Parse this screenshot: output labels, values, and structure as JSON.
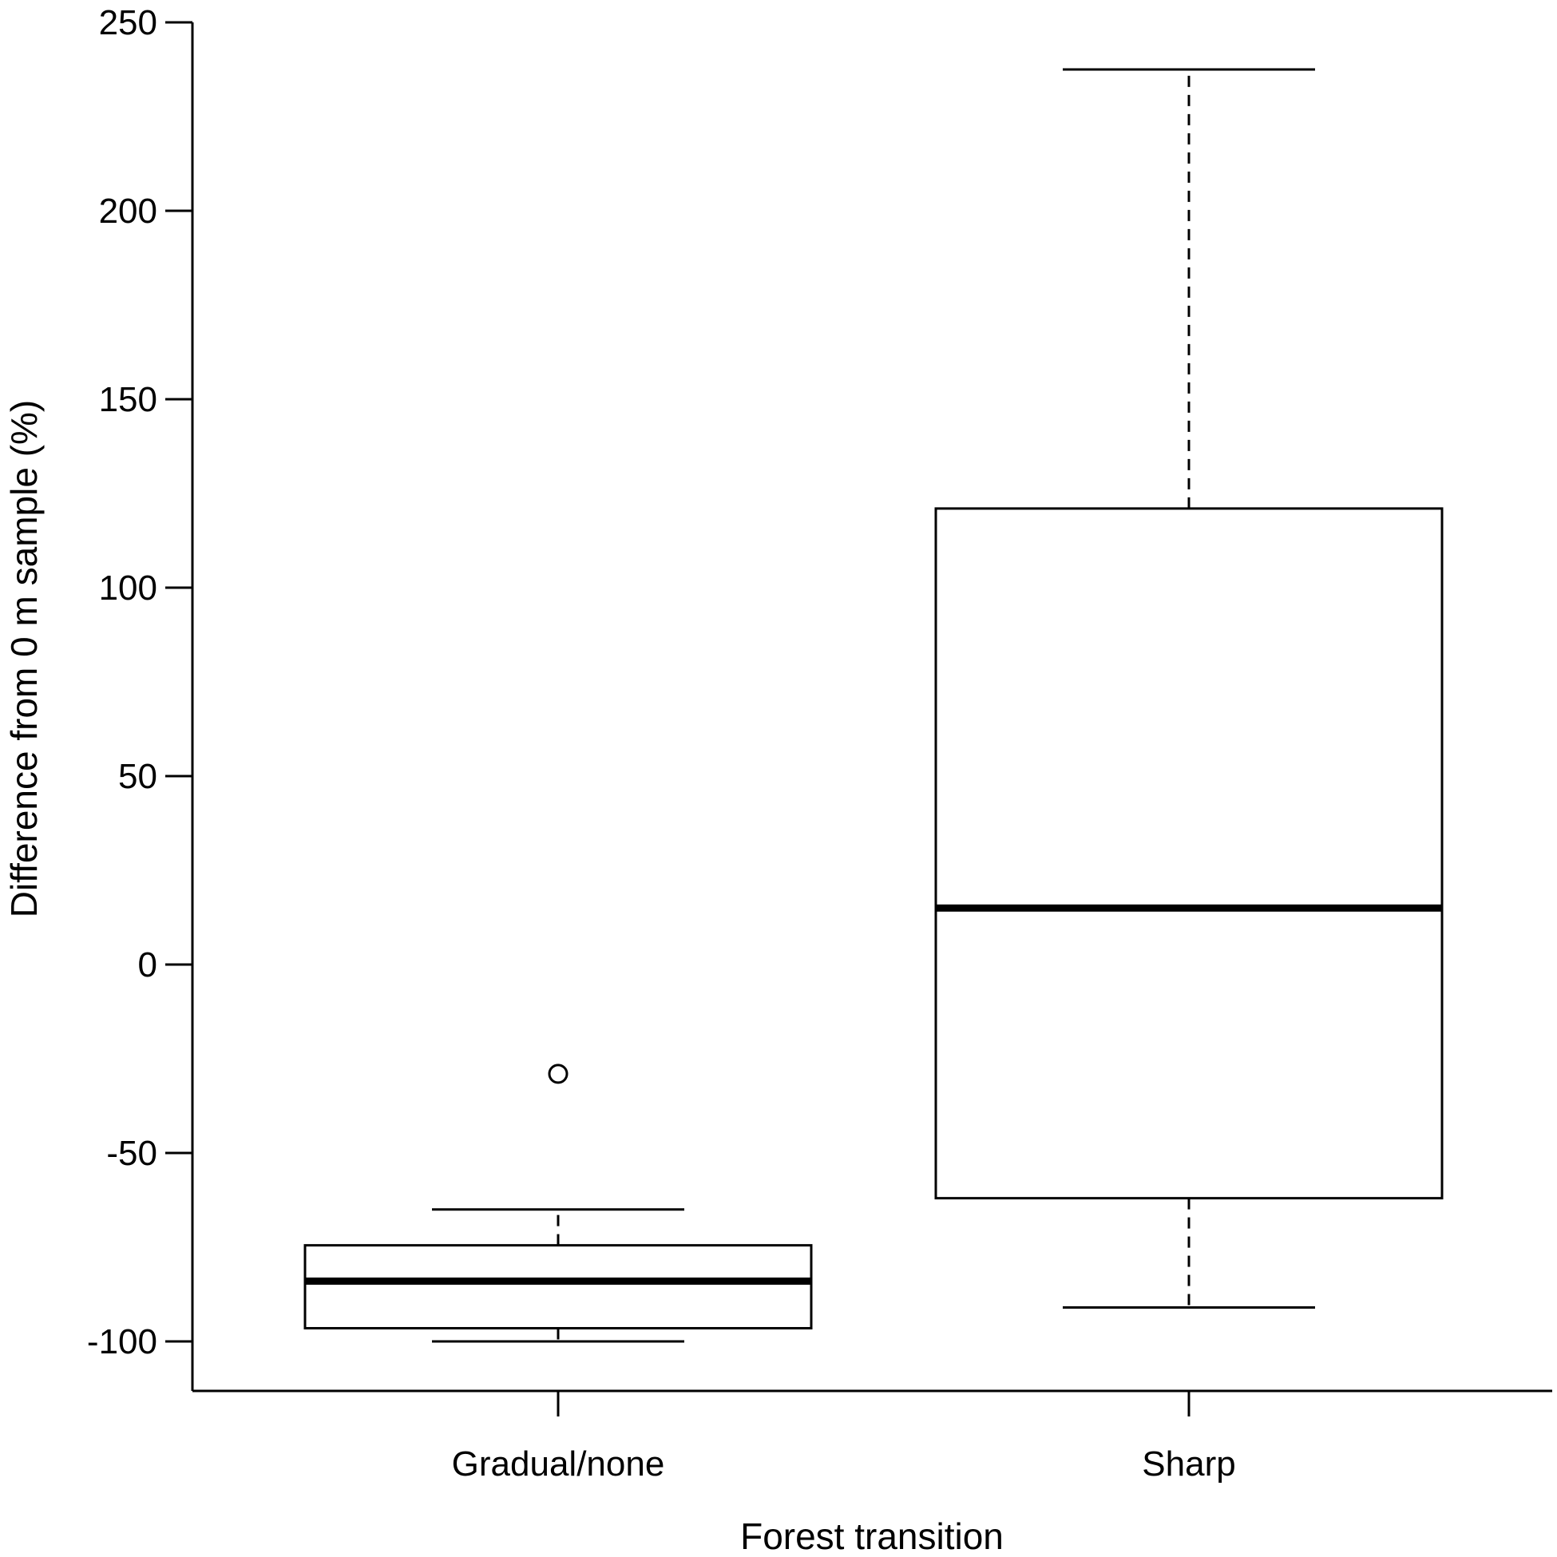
{
  "chart_data": {
    "type": "boxplot",
    "title": "",
    "xlabel": "Forest transition",
    "ylabel": "Difference from 0 m sample (%)",
    "ylim": [
      -113,
      250
    ],
    "yticks": [
      -100,
      -50,
      0,
      50,
      100,
      150,
      200,
      250
    ],
    "ytick_labels": [
      "-100",
      "-50",
      "0",
      "50",
      "100",
      "150",
      "200",
      "250"
    ],
    "grid": false,
    "legend": "none",
    "categories": [
      "Gradual/none",
      "Sharp"
    ],
    "boxes": [
      {
        "category": "Gradual/none",
        "whisker_low": -100,
        "q1": -96.5,
        "median": -84,
        "q3": -74.5,
        "whisker_high": -65,
        "outliers": [
          -29
        ]
      },
      {
        "category": "Sharp",
        "whisker_low": -91,
        "q1": -62,
        "median": 15,
        "q3": 121,
        "whisker_high": 237.5,
        "outliers": []
      }
    ],
    "colors": {
      "line": "#000000",
      "box_fill": "#ffffff"
    }
  }
}
